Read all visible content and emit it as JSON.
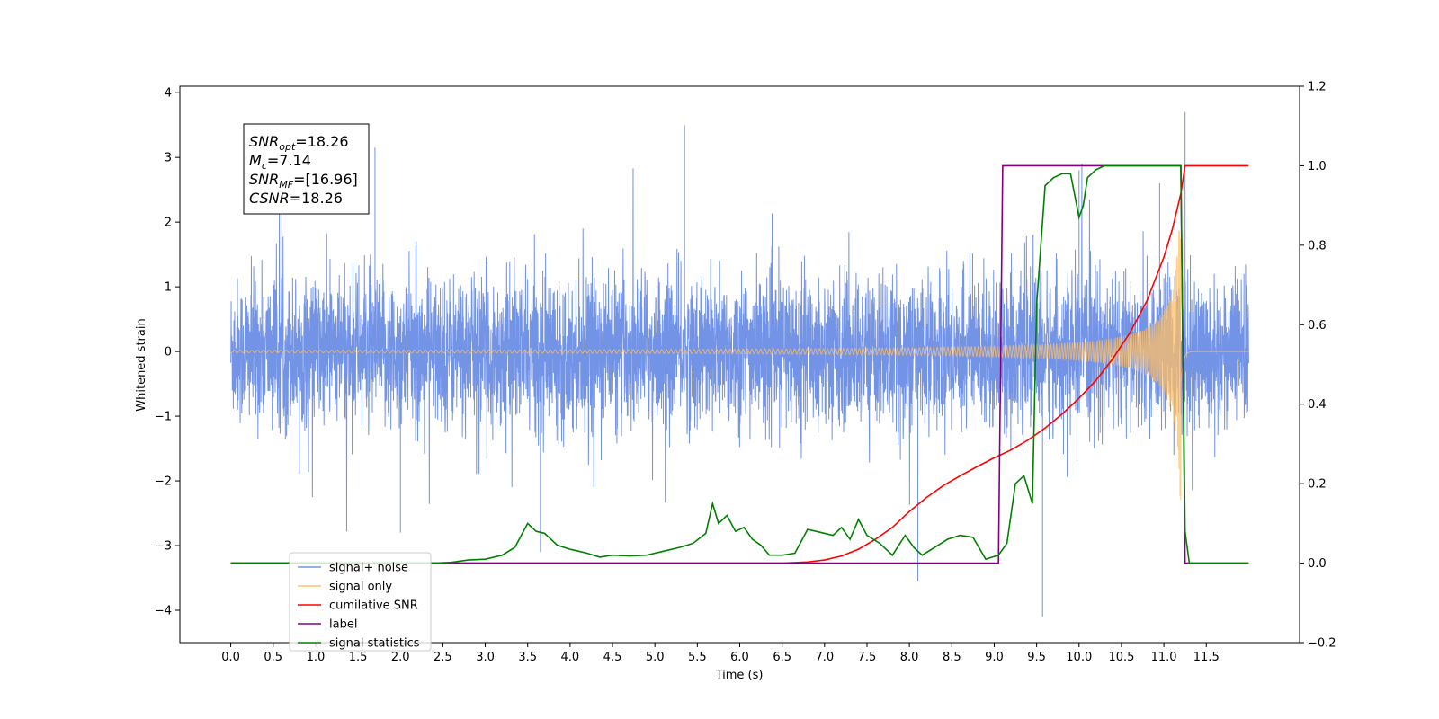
{
  "chart_data": {
    "type": "line",
    "xlabel": "Time (s)",
    "ylabel": "Whitened strain",
    "xlim": [
      -0.6,
      12.6
    ],
    "ylim": [
      -4.5,
      4.1
    ],
    "y2lim": [
      -0.2,
      1.2
    ],
    "x_ticks": [
      "0.0",
      "0.5",
      "1.0",
      "1.5",
      "2.0",
      "2.5",
      "3.0",
      "3.5",
      "4.0",
      "4.5",
      "5.0",
      "5.5",
      "6.0",
      "6.5",
      "7.0",
      "7.5",
      "8.0",
      "8.5",
      "9.0",
      "9.5",
      "10.0",
      "10.5",
      "11.0",
      "11.5"
    ],
    "y_ticks": [
      "−4",
      "−3",
      "−2",
      "−1",
      "0",
      "1",
      "2",
      "3",
      "4"
    ],
    "y2_ticks": [
      "−0.2",
      "0.0",
      "0.2",
      "0.4",
      "0.6",
      "0.8",
      "1.0",
      "1.2"
    ],
    "legend_position": "lower-left",
    "info_box": {
      "lines": [
        {
          "base": "SNR",
          "sub": "opt",
          "rest": "=18.26"
        },
        {
          "base": "M",
          "sub": "c",
          "rest": "=7.14"
        },
        {
          "base": "SNR",
          "sub": "MF",
          "rest": "=[16.96]"
        },
        {
          "base": "CSNR",
          "sub": "",
          "rest": "=18.26"
        }
      ]
    },
    "series": [
      {
        "name": "signal+ noise",
        "axis": "left",
        "color": "#7393e6",
        "description_range": [
          0.0,
          12.0
        ],
        "noise_sigma": 0.9,
        "spikes": [
          [
            5.35,
            3.5
          ],
          [
            11.25,
            3.7
          ],
          [
            9.57,
            -4.1
          ],
          [
            8.1,
            -3.55
          ],
          [
            1.7,
            3.15
          ],
          [
            3.65,
            -3.1
          ],
          [
            10.95,
            2.6
          ],
          [
            2.0,
            -2.8
          ],
          [
            10.0,
            2.8
          ]
        ]
      },
      {
        "name": "signal only",
        "axis": "left",
        "color": "#ffbf66",
        "chirp_end": 11.2
      },
      {
        "name": "cumilative SNR",
        "axis": "right",
        "color": "#ff0000",
        "x": [
          0.0,
          6.5,
          6.8,
          7.0,
          7.2,
          7.4,
          7.6,
          7.8,
          8.0,
          8.2,
          8.4,
          8.6,
          8.8,
          9.0,
          9.2,
          9.4,
          9.6,
          9.8,
          10.0,
          10.2,
          10.4,
          10.6,
          10.8,
          11.0,
          11.1,
          11.2,
          11.25,
          12.0
        ],
        "values": [
          0.0,
          0.0,
          0.003,
          0.008,
          0.018,
          0.035,
          0.06,
          0.09,
          0.13,
          0.165,
          0.195,
          0.22,
          0.243,
          0.265,
          0.285,
          0.31,
          0.34,
          0.375,
          0.415,
          0.46,
          0.515,
          0.58,
          0.66,
          0.77,
          0.84,
          0.93,
          1.0,
          1.0
        ]
      },
      {
        "name": "label",
        "axis": "right",
        "color": "#800080",
        "x": [
          0.0,
          9.05,
          9.1,
          11.2,
          11.25,
          12.0
        ],
        "values": [
          0.0,
          0.0,
          1.0,
          1.0,
          0.0,
          0.0
        ]
      },
      {
        "name": "signal statistics",
        "axis": "right",
        "color": "#008000",
        "x": [
          0.0,
          2.4,
          2.6,
          2.8,
          3.0,
          3.2,
          3.35,
          3.5,
          3.6,
          3.7,
          3.85,
          4.0,
          4.2,
          4.35,
          4.5,
          4.7,
          4.9,
          5.1,
          5.3,
          5.45,
          5.6,
          5.68,
          5.75,
          5.85,
          5.95,
          6.05,
          6.15,
          6.25,
          6.35,
          6.5,
          6.65,
          6.8,
          6.9,
          7.0,
          7.1,
          7.2,
          7.3,
          7.4,
          7.5,
          7.65,
          7.8,
          7.95,
          8.05,
          8.15,
          8.3,
          8.45,
          8.6,
          8.75,
          8.9,
          9.05,
          9.15,
          9.25,
          9.35,
          9.45,
          9.5,
          9.6,
          9.7,
          9.8,
          9.9,
          10.0,
          10.05,
          10.1,
          10.2,
          10.3,
          10.5,
          11.0,
          11.15,
          11.2,
          11.25,
          11.3,
          11.35,
          12.0
        ],
        "values": [
          0.0,
          0.0,
          0.002,
          0.008,
          0.01,
          0.02,
          0.04,
          0.1,
          0.08,
          0.075,
          0.045,
          0.035,
          0.025,
          0.015,
          0.02,
          0.018,
          0.02,
          0.03,
          0.04,
          0.05,
          0.075,
          0.15,
          0.1,
          0.12,
          0.08,
          0.09,
          0.06,
          0.045,
          0.02,
          0.02,
          0.025,
          0.085,
          0.08,
          0.075,
          0.07,
          0.09,
          0.06,
          0.11,
          0.07,
          0.05,
          0.02,
          0.07,
          0.04,
          0.02,
          0.04,
          0.06,
          0.07,
          0.065,
          0.01,
          0.02,
          0.05,
          0.2,
          0.22,
          0.15,
          0.65,
          0.95,
          0.97,
          0.98,
          0.98,
          0.87,
          0.9,
          0.97,
          0.99,
          1.0,
          1.0,
          1.0,
          1.0,
          1.0,
          0.08,
          0.0,
          0.0,
          0.0
        ]
      }
    ]
  }
}
